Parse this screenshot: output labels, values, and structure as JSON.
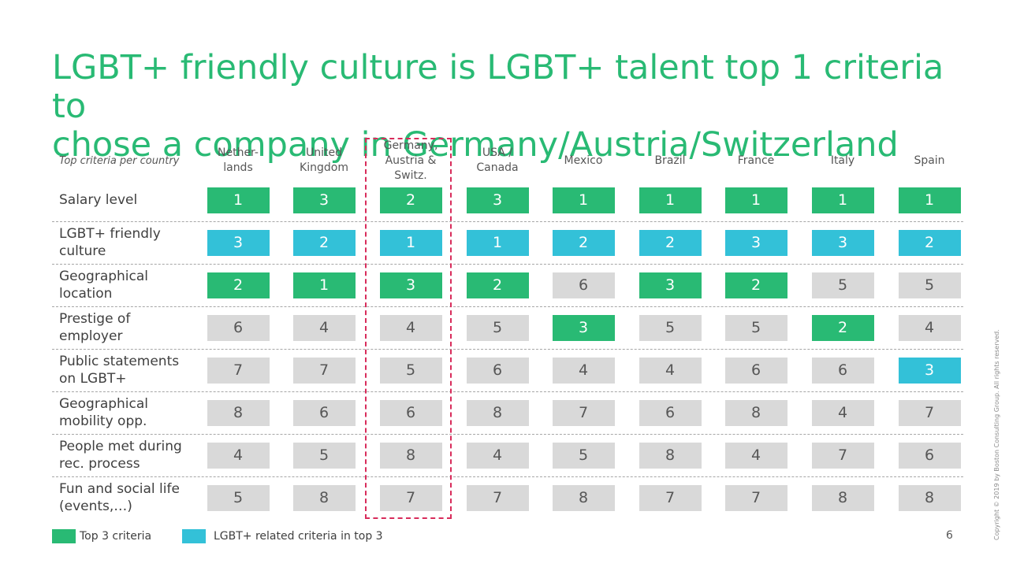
{
  "title": "LGBT+ friendly culture is LGBT+ talent top 1 criteria to\nchose a company in Germany/Austria/Switzerland",
  "page_number": "6",
  "copyright": "Copyright © 2019 by Boston Consulting Group. All rights reserved.",
  "colors": {
    "title": "#29BA74",
    "top3": "#29BA74",
    "lgbt_top3": "#33C1D8",
    "other": "#D9D9D9",
    "highlight_border": "#D82C5B"
  },
  "legend": [
    {
      "label": "Top 3 criteria",
      "color": "#29BA74"
    },
    {
      "label": "LGBT+ related criteria in top 3",
      "color": "#33C1D8"
    }
  ],
  "chart_data": {
    "type": "table",
    "row_header": "Top criteria per country",
    "columns": [
      "Nether-\nlands",
      "United\nKingdom",
      "Germany,\nAustria &\nSwitz.",
      "USA /\nCanada",
      "Mexico",
      "Brazil",
      "France",
      "Italy",
      "Spain"
    ],
    "highlighted_column": "Germany,\nAustria &\nSwitz.",
    "rows": [
      {
        "label": "Salary level",
        "values": [
          1,
          3,
          2,
          3,
          1,
          1,
          1,
          1,
          1
        ],
        "styles": [
          "top3",
          "top3",
          "top3",
          "top3",
          "top3",
          "top3",
          "top3",
          "top3",
          "top3"
        ]
      },
      {
        "label": "LGBT+ friendly\nculture",
        "values": [
          3,
          2,
          1,
          1,
          2,
          2,
          3,
          3,
          2
        ],
        "styles": [
          "lgbt",
          "lgbt",
          "lgbt",
          "lgbt",
          "lgbt",
          "lgbt",
          "lgbt",
          "lgbt",
          "lgbt"
        ]
      },
      {
        "label": "Geographical\nlocation",
        "values": [
          2,
          1,
          3,
          2,
          6,
          3,
          2,
          5,
          5
        ],
        "styles": [
          "top3",
          "top3",
          "top3",
          "top3",
          "other",
          "top3",
          "top3",
          "other",
          "other"
        ]
      },
      {
        "label": "Prestige of\nemployer",
        "values": [
          6,
          4,
          4,
          5,
          3,
          5,
          5,
          2,
          4
        ],
        "styles": [
          "other",
          "other",
          "other",
          "other",
          "top3",
          "other",
          "other",
          "top3",
          "other"
        ]
      },
      {
        "label": "Public statements\non LGBT+",
        "values": [
          7,
          7,
          5,
          6,
          4,
          4,
          6,
          6,
          3
        ],
        "styles": [
          "other",
          "other",
          "other",
          "other",
          "other",
          "other",
          "other",
          "other",
          "lgbt"
        ]
      },
      {
        "label": "Geographical\nmobility opp.",
        "values": [
          8,
          6,
          6,
          8,
          7,
          6,
          8,
          4,
          7
        ],
        "styles": [
          "other",
          "other",
          "other",
          "other",
          "other",
          "other",
          "other",
          "other",
          "other"
        ]
      },
      {
        "label": "People met during\nrec. process",
        "values": [
          4,
          5,
          8,
          4,
          5,
          8,
          4,
          7,
          6
        ],
        "styles": [
          "other",
          "other",
          "other",
          "other",
          "other",
          "other",
          "other",
          "other",
          "other"
        ]
      },
      {
        "label": "Fun and social life\n(events,…)",
        "values": [
          5,
          8,
          7,
          7,
          8,
          7,
          7,
          8,
          8
        ],
        "styles": [
          "other",
          "other",
          "other",
          "other",
          "other",
          "other",
          "other",
          "other",
          "other"
        ]
      }
    ]
  }
}
